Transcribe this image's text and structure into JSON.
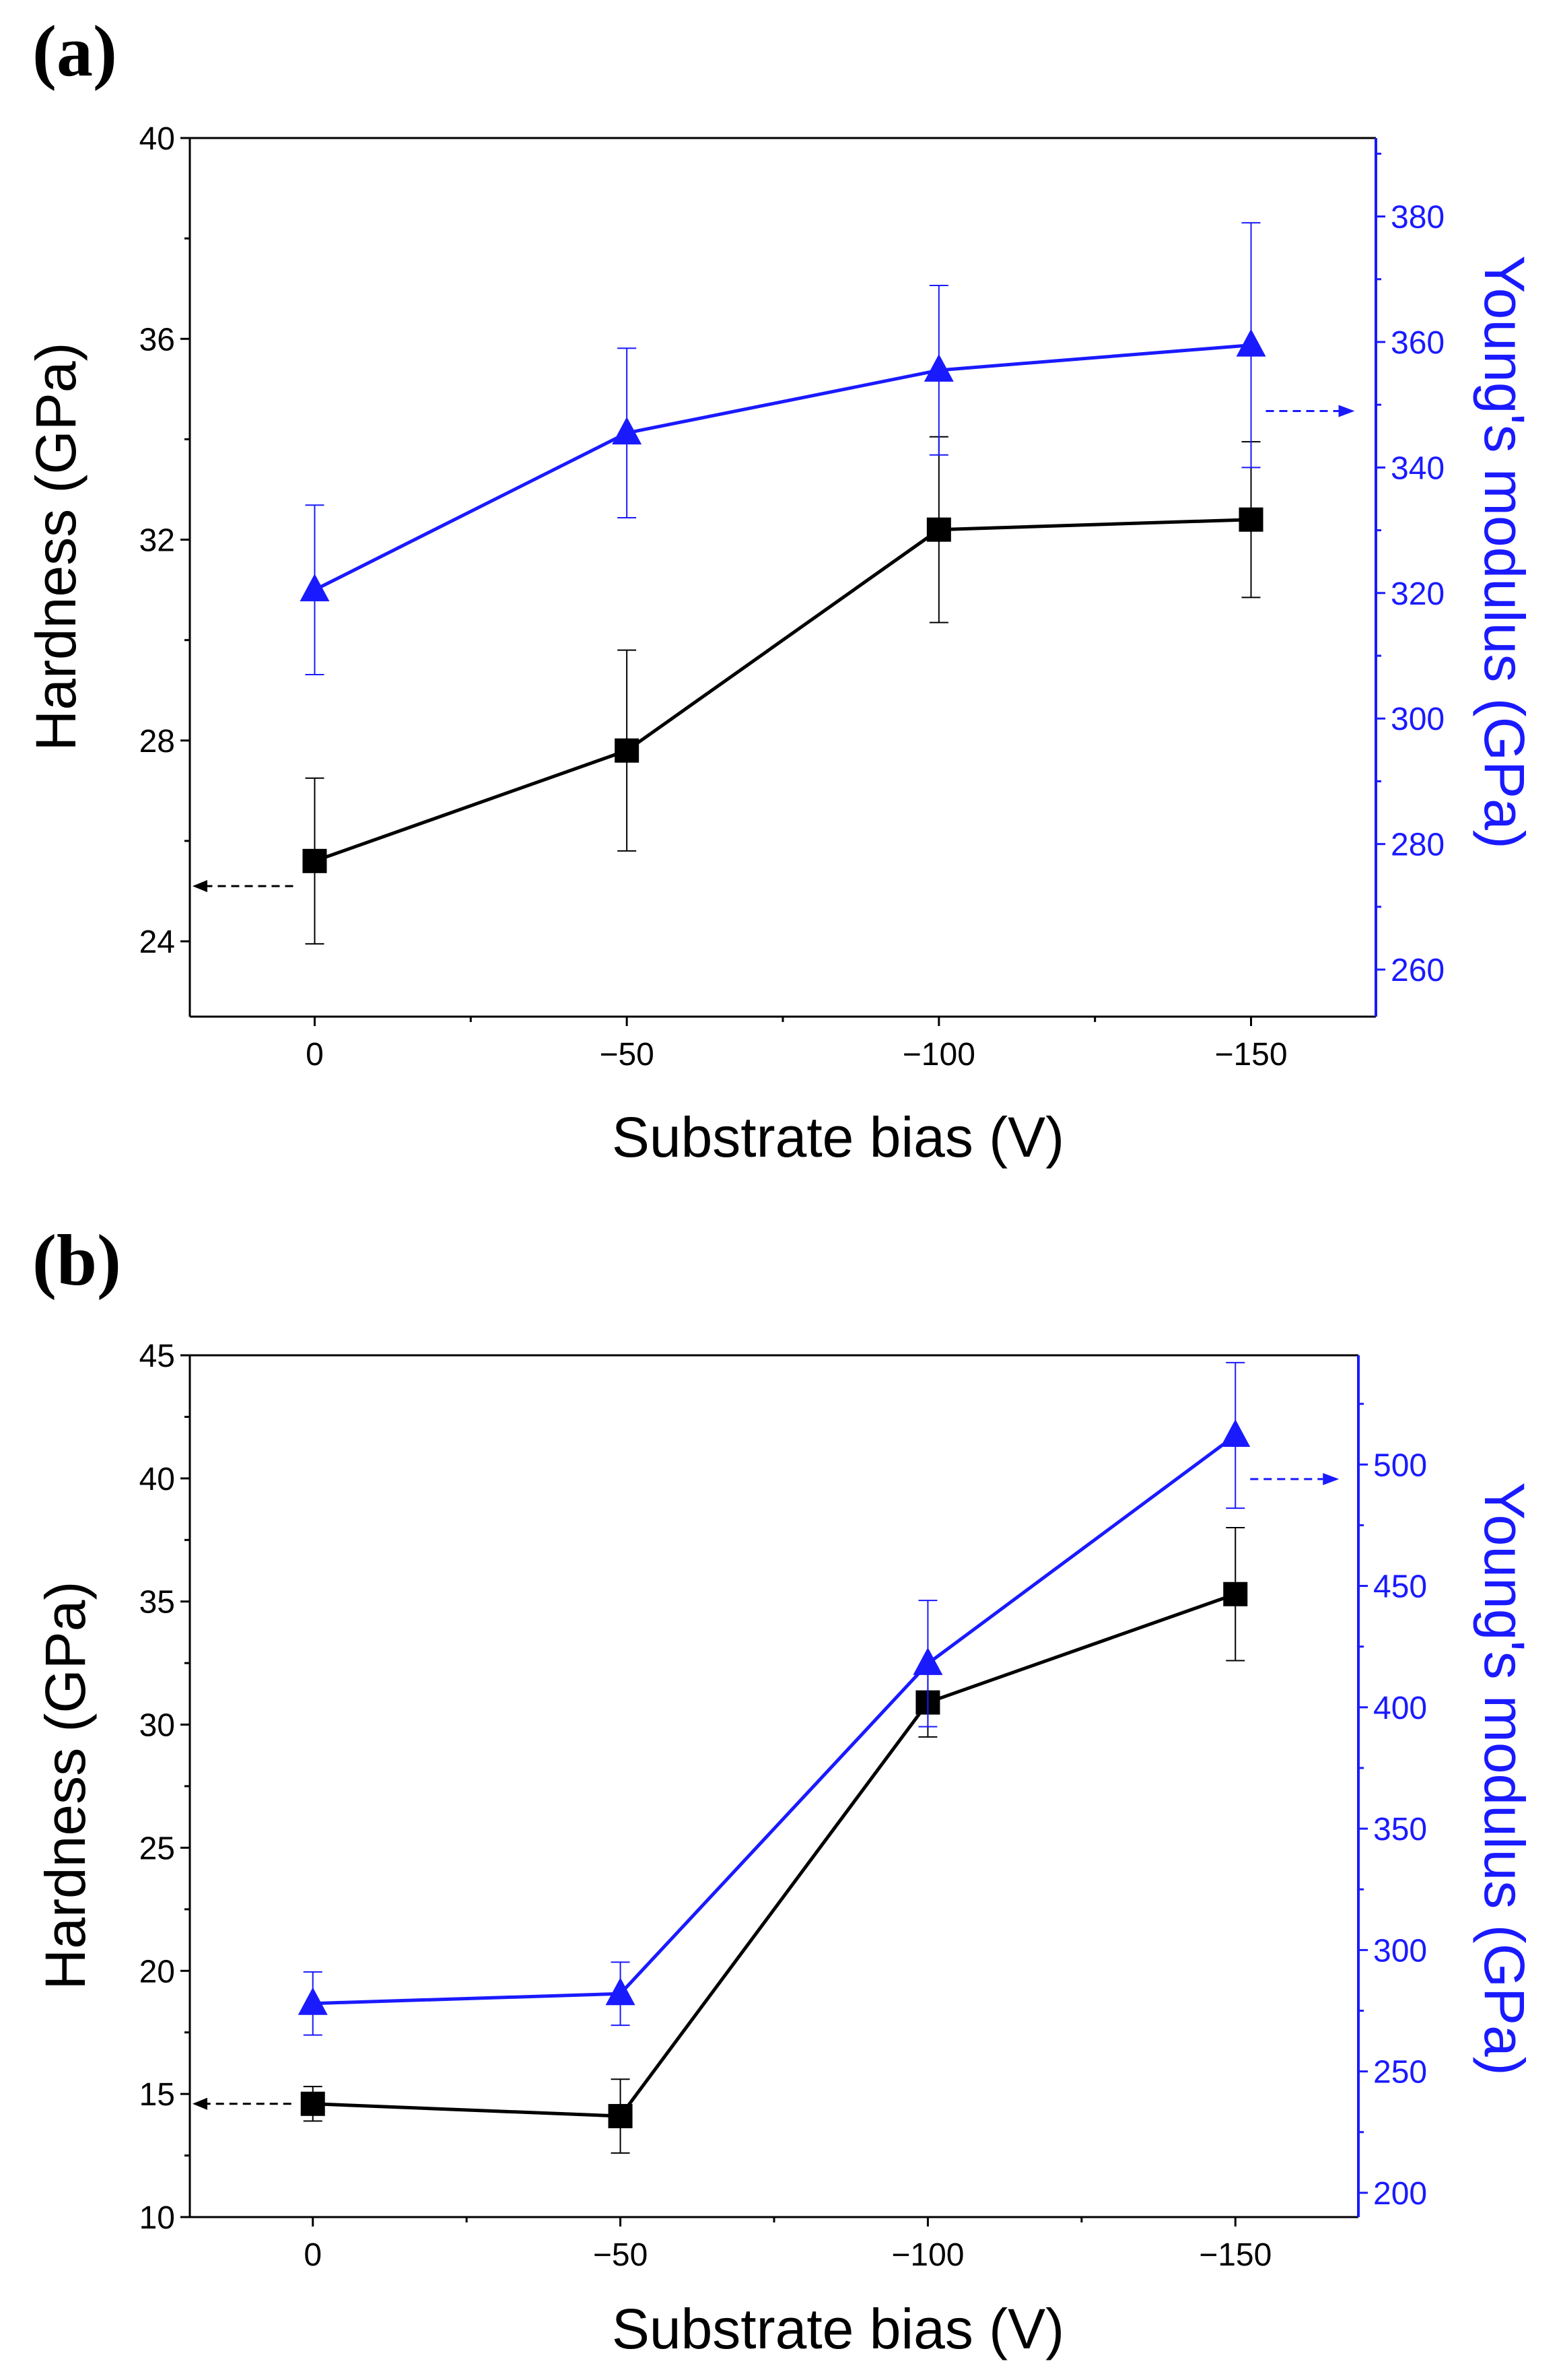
{
  "colors": {
    "hardness": "#000000",
    "modulus": "#1a1aff"
  },
  "chart_data": [
    {
      "panel_label": "(a)",
      "type": "line",
      "x_values": [
        0,
        -50,
        -100,
        -150
      ],
      "x_tick_labels": [
        "0",
        "−50",
        "−100",
        "−150"
      ],
      "xlabel": "Substrate bias (V)",
      "xlim": [
        20,
        -170
      ],
      "ylabel_left": "Hardness (GPa)",
      "ylabel_right": "Young's modulus (GPa)",
      "left_ylim": [
        22.5,
        40
      ],
      "left_ticks": [
        24,
        28,
        32,
        36,
        40
      ],
      "right_ylim": [
        252.5,
        392.5
      ],
      "right_ticks": [
        260,
        280,
        300,
        320,
        340,
        360,
        380
      ],
      "series": [
        {
          "name": "Hardness",
          "axis": "left",
          "marker": "square",
          "values": [
            25.6,
            27.8,
            32.2,
            32.4
          ],
          "errors": [
            1.65,
            2.0,
            1.85,
            1.55
          ]
        },
        {
          "name": "Young's modulus",
          "axis": "right",
          "marker": "triangle",
          "values": [
            320.5,
            345.5,
            355.5,
            359.5
          ],
          "errors": [
            13.5,
            13.5,
            13.5,
            19.5
          ]
        }
      ],
      "arrows": [
        {
          "series": "Hardness",
          "direction": "left",
          "x": 0,
          "y": 25.1
        },
        {
          "series": "Young's modulus",
          "direction": "right",
          "x": -150,
          "y": 349
        }
      ]
    },
    {
      "panel_label": "(b)",
      "type": "line",
      "x_values": [
        0,
        -50,
        -100,
        -150
      ],
      "x_tick_labels": [
        "0",
        "−50",
        "−100",
        "−150"
      ],
      "xlabel": "Substrate bias (V)",
      "xlim": [
        20,
        -170
      ],
      "ylabel_left": "Hardness (GPa)",
      "ylabel_right": "Young's modulus (GPa)",
      "left_ylim": [
        10,
        45
      ],
      "left_ticks": [
        10,
        15,
        20,
        25,
        30,
        35,
        40,
        45
      ],
      "right_ylim": [
        190,
        545
      ],
      "right_ticks": [
        200,
        250,
        300,
        350,
        400,
        450,
        500
      ],
      "series": [
        {
          "name": "Hardness",
          "axis": "left",
          "marker": "square",
          "values": [
            14.6,
            14.1,
            30.9,
            35.3
          ],
          "errors": [
            0.7,
            1.5,
            1.4,
            2.7
          ]
        },
        {
          "name": "Young's modulus",
          "axis": "right",
          "marker": "triangle",
          "values": [
            278,
            282,
            418,
            512
          ],
          "errors": [
            13,
            13,
            26,
            30
          ]
        }
      ],
      "arrows": [
        {
          "series": "Hardness",
          "direction": "left",
          "x": 0,
          "y": 14.6
        },
        {
          "series": "Young's modulus",
          "direction": "right",
          "x": -150,
          "y": 494
        }
      ]
    }
  ]
}
